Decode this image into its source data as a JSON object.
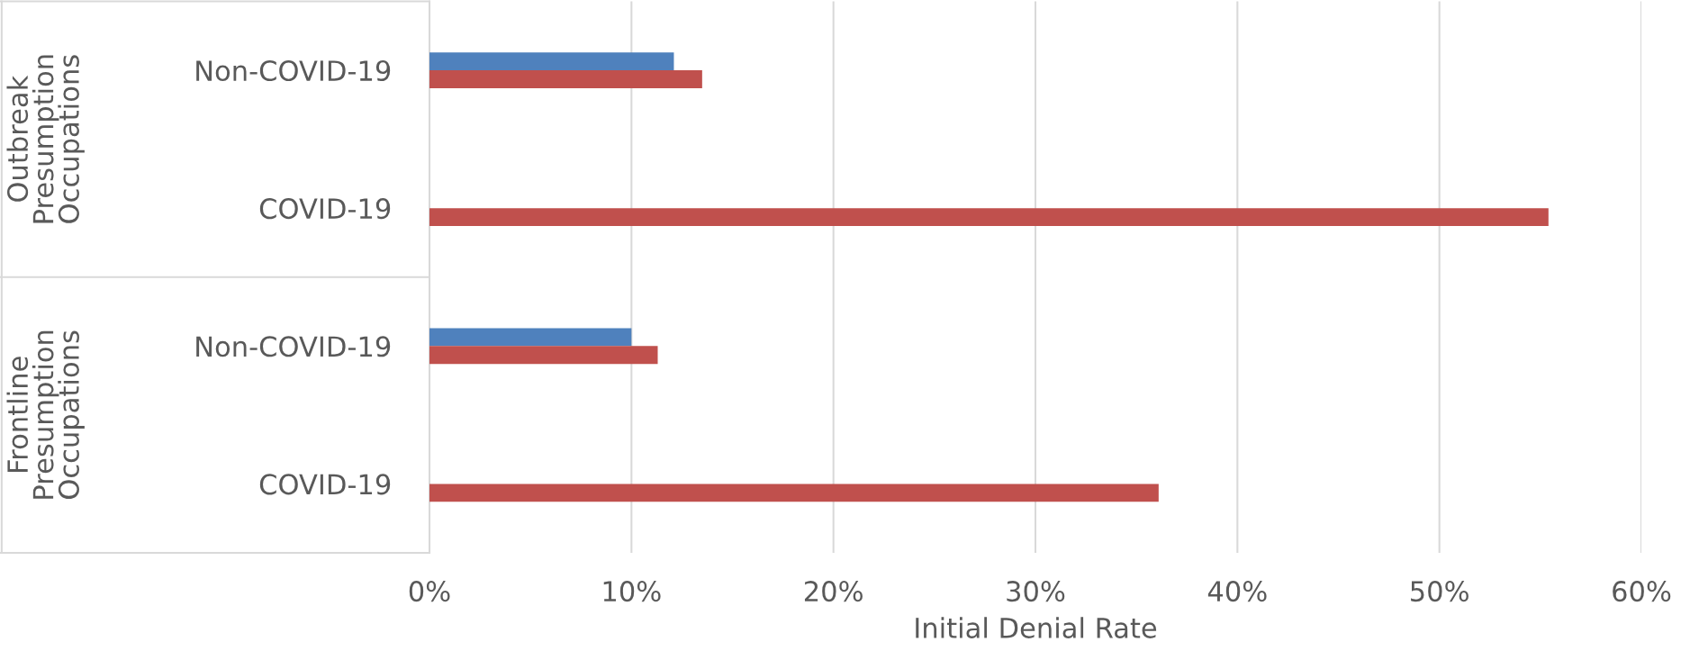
{
  "chart_data": {
    "type": "bar",
    "orientation": "horizontal",
    "xlabel": "Initial Denial Rate",
    "categories": [
      "Non-COVID-19",
      "COVID-19",
      "Non-COVID-19",
      "COVID-19"
    ],
    "series": [
      {
        "color": "#4f81bd",
        "values": [
          12.1,
          null,
          10.0,
          null
        ]
      },
      {
        "color": "#c0504d",
        "values": [
          13.5,
          55.4,
          11.3,
          36.1
        ]
      }
    ],
    "xlim": [
      0,
      60
    ],
    "xticks": [
      {
        "value": 0,
        "label": "0%"
      },
      {
        "value": 10,
        "label": "10%"
      },
      {
        "value": 20,
        "label": "20%"
      },
      {
        "value": 30,
        "label": "30%"
      },
      {
        "value": 40,
        "label": "40%"
      },
      {
        "value": 50,
        "label": "50%"
      },
      {
        "value": 60,
        "label": "60%"
      }
    ],
    "grid": "x",
    "legend": false,
    "annotations": [
      "Outbreak\nPresumption\nOccupations",
      "Frontline\nPresumption\nOccupations"
    ]
  }
}
